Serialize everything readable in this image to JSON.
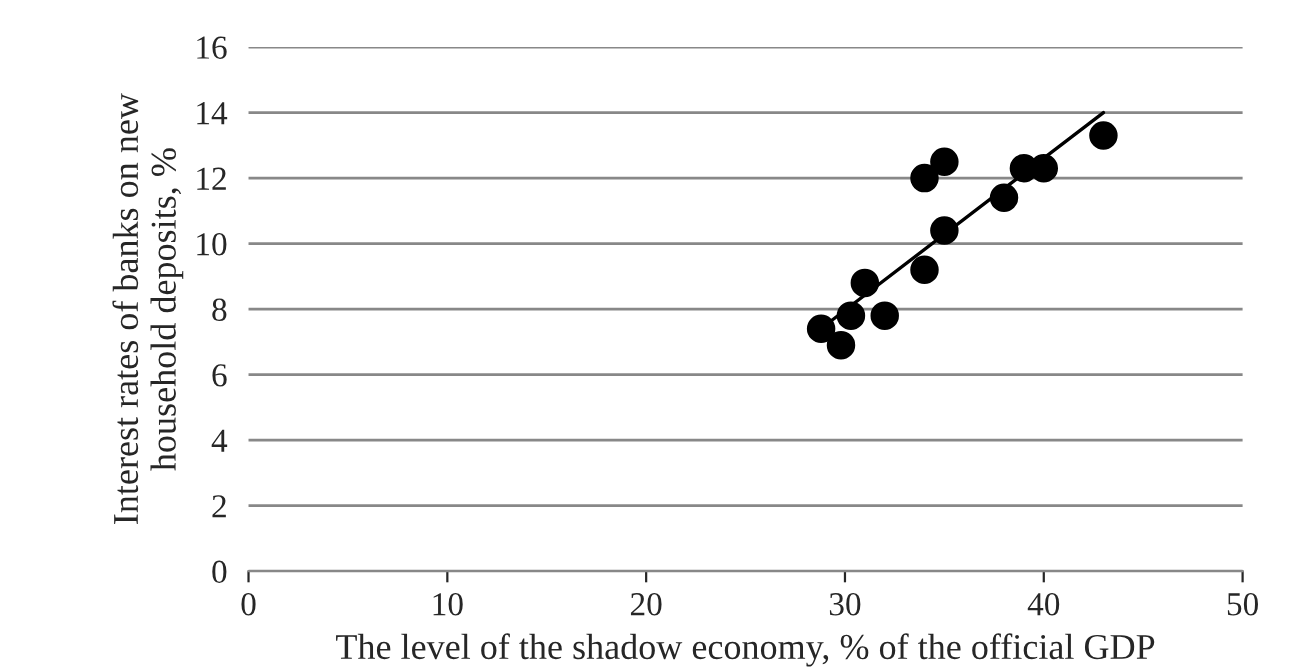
{
  "chart_data": {
    "type": "scatter",
    "xlabel": "The level of the shadow economy, % of the official GDP",
    "ylabel": "Interest rates of banks on new\nhousehold deposits, %",
    "xlim": [
      0,
      50
    ],
    "xticks": [
      0,
      10,
      20,
      30,
      40,
      50
    ],
    "ylim": [
      0,
      16
    ],
    "yticks": [
      0,
      2,
      4,
      6,
      8,
      10,
      12,
      14,
      16
    ],
    "grid": "y",
    "series": [
      {
        "color": "#000000",
        "marker": "circle",
        "x": [
          28.8,
          29.8,
          30.3,
          31,
          32,
          34,
          34,
          35,
          35,
          38,
          39,
          40,
          43
        ],
        "values": [
          7.4,
          6.9,
          7.8,
          8.8,
          7.8,
          9.2,
          12,
          12.5,
          10.4,
          11.4,
          12.3,
          12.3,
          13.3
        ]
      },
      {
        "type": "line",
        "color": "#000000",
        "x": [
          29,
          43
        ],
        "values": [
          7.5,
          14
        ]
      }
    ]
  }
}
